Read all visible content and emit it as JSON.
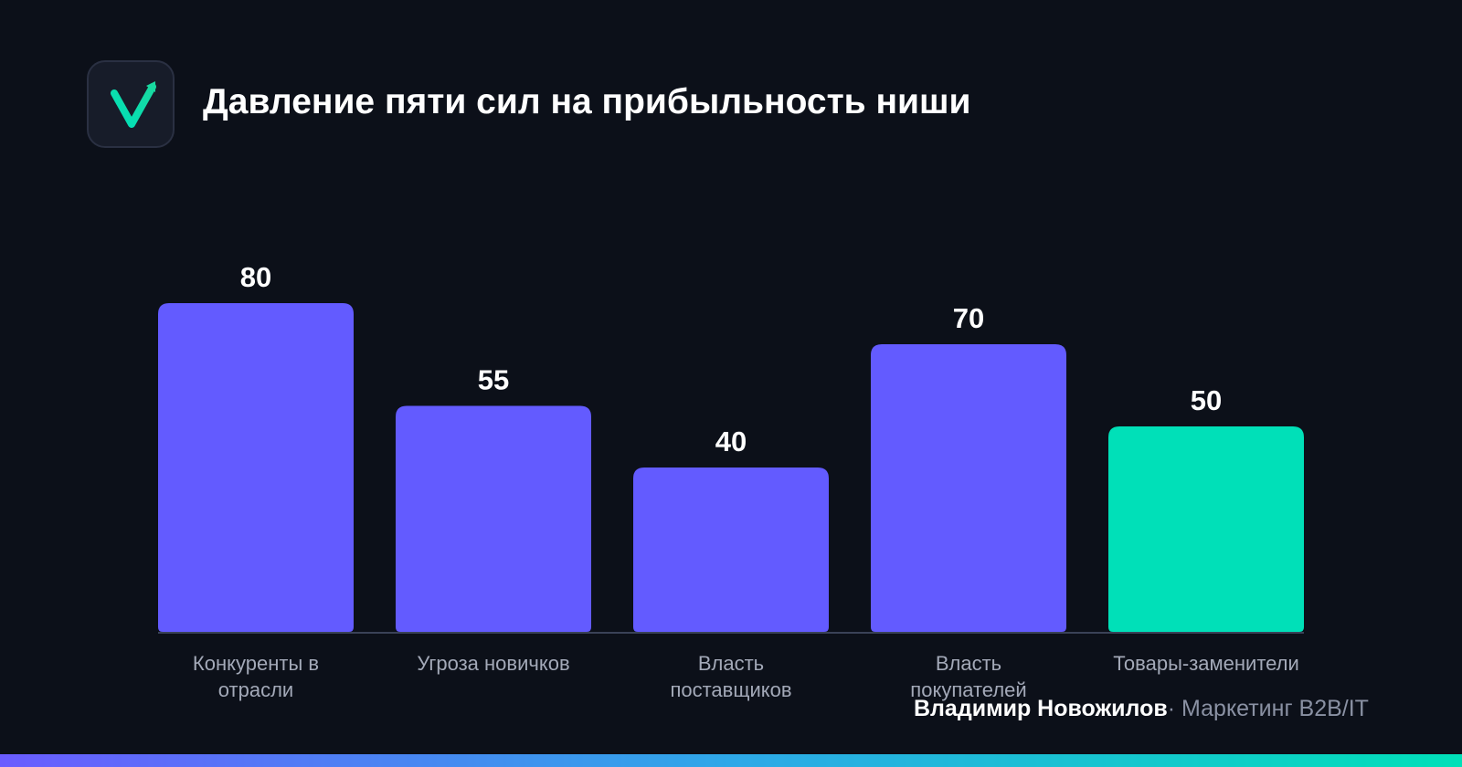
{
  "header": {
    "title": "Давление пяти сил на прибыльность ниши",
    "logo_icon": "checkmark-arrow-icon"
  },
  "chart_data": {
    "type": "bar",
    "title": "Давление пяти сил на прибыльность ниши",
    "categories": [
      [
        "Конкуренты в",
        "отрасли"
      ],
      [
        "Угроза новичков"
      ],
      [
        "Власть",
        "поставщиков"
      ],
      [
        "Власть",
        "покупателей"
      ],
      [
        "Товары-заменители"
      ]
    ],
    "values": [
      80,
      55,
      40,
      70,
      50
    ],
    "value_labels": [
      "80",
      "55",
      "40",
      "70",
      "50"
    ],
    "highlight_index": 4,
    "ylim": [
      0,
      100
    ],
    "grid": false,
    "colors": {
      "bar": "#635bff",
      "highlight": "#00e0b8",
      "baseline": "#3a4257",
      "tick_label": "#a3a9b8",
      "value_label": "#ffffff"
    }
  },
  "footer": {
    "author": "Владимир Новожилов",
    "separator": "·",
    "tagline": "Маркетинг B2B/IT"
  },
  "colors": {
    "background": "#0c1019",
    "accent_green": "#00e0b8",
    "accent_purple": "#635bff"
  }
}
